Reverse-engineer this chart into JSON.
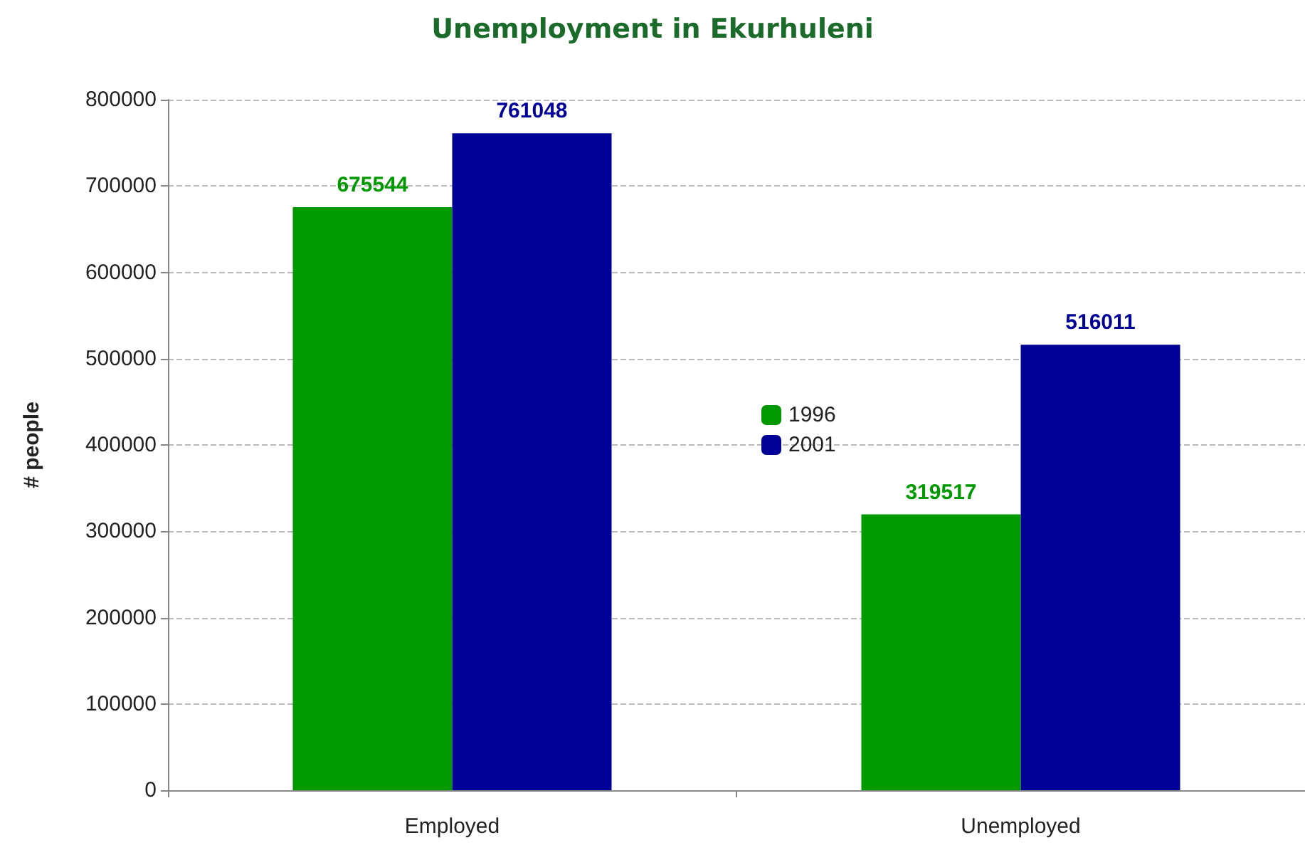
{
  "chart_data": {
    "type": "bar",
    "title": "Unemployment in Ekurhuleni",
    "ylabel": "# people",
    "categories": [
      "Employed",
      "Unemployed"
    ],
    "series": [
      {
        "name": "1996",
        "color": "#009900",
        "values": [
          675544,
          319517
        ]
      },
      {
        "name": "2001",
        "color": "#000099",
        "values": [
          761048,
          516011
        ]
      }
    ],
    "ylim": [
      0,
      800000
    ],
    "yticks": [
      0,
      100000,
      200000,
      300000,
      400000,
      500000,
      600000,
      700000,
      800000
    ],
    "grid": "y",
    "legend": "center",
    "data_labels": true
  }
}
